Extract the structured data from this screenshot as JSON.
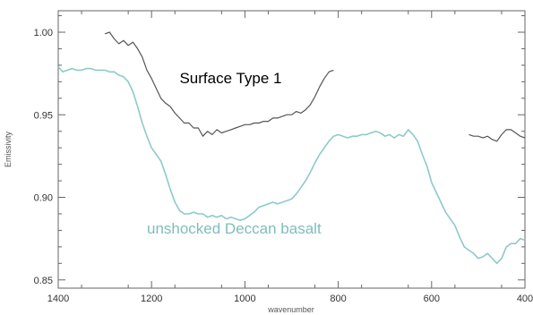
{
  "chart_data": {
    "type": "line",
    "title": "",
    "xlabel": "wavenumber",
    "ylabel": "Emissivity",
    "xlim": [
      1400,
      400
    ],
    "ylim": [
      0.845,
      1.013
    ],
    "x_reversed": true,
    "grid": false,
    "x_ticks": [
      "1400",
      "1200",
      "1000",
      "800",
      "600",
      "400"
    ],
    "y_ticks": [
      "0.85",
      "0.90",
      "0.95",
      "1.00"
    ],
    "annotations": [
      {
        "name": "surface-type-1-label",
        "text": "Surface Type 1",
        "x": 1140,
        "y": 0.969,
        "color": "#000000"
      },
      {
        "name": "deccan-basalt-label",
        "text": "unshocked Deccan basalt",
        "x": 1210,
        "y": 0.878,
        "color": "#7fbdbb"
      }
    ],
    "series": [
      {
        "name": "Surface Type 1",
        "color": "#555555",
        "segments": [
          [
            [
              1300,
              0.999
            ],
            [
              1290,
              1.0
            ],
            [
              1280,
              0.996
            ],
            [
              1270,
              0.993
            ],
            [
              1260,
              0.995
            ],
            [
              1250,
              0.992
            ],
            [
              1240,
              0.994
            ],
            [
              1230,
              0.99
            ],
            [
              1220,
              0.985
            ],
            [
              1210,
              0.977
            ],
            [
              1200,
              0.972
            ],
            [
              1190,
              0.966
            ],
            [
              1180,
              0.96
            ],
            [
              1170,
              0.957
            ],
            [
              1160,
              0.955
            ],
            [
              1150,
              0.951
            ],
            [
              1140,
              0.948
            ],
            [
              1130,
              0.945
            ],
            [
              1120,
              0.945
            ],
            [
              1110,
              0.942
            ],
            [
              1100,
              0.942
            ],
            [
              1090,
              0.937
            ],
            [
              1080,
              0.94
            ],
            [
              1070,
              0.938
            ],
            [
              1060,
              0.941
            ],
            [
              1050,
              0.939
            ],
            [
              1040,
              0.94
            ],
            [
              1030,
              0.941
            ],
            [
              1020,
              0.942
            ],
            [
              1010,
              0.943
            ],
            [
              1000,
              0.944
            ],
            [
              990,
              0.944
            ],
            [
              980,
              0.945
            ],
            [
              970,
              0.945
            ],
            [
              960,
              0.946
            ],
            [
              950,
              0.946
            ],
            [
              940,
              0.948
            ],
            [
              930,
              0.948
            ],
            [
              920,
              0.949
            ],
            [
              910,
              0.95
            ],
            [
              900,
              0.95
            ],
            [
              890,
              0.952
            ],
            [
              880,
              0.951
            ],
            [
              870,
              0.953
            ],
            [
              860,
              0.956
            ],
            [
              850,
              0.961
            ],
            [
              840,
              0.967
            ],
            [
              830,
              0.972
            ],
            [
              820,
              0.976
            ],
            [
              810,
              0.977
            ]
          ],
          [
            [
              520,
              0.938
            ],
            [
              510,
              0.937
            ],
            [
              500,
              0.937
            ],
            [
              490,
              0.936
            ],
            [
              480,
              0.937
            ],
            [
              470,
              0.935
            ],
            [
              460,
              0.934
            ],
            [
              450,
              0.938
            ],
            [
              440,
              0.941
            ],
            [
              430,
              0.941
            ],
            [
              420,
              0.939
            ],
            [
              410,
              0.937
            ],
            [
              400,
              0.936
            ]
          ]
        ]
      },
      {
        "name": "unshocked Deccan basalt",
        "color": "#8ccbc8",
        "segments": [
          [
            [
              1400,
              0.979
            ],
            [
              1390,
              0.976
            ],
            [
              1380,
              0.977
            ],
            [
              1370,
              0.978
            ],
            [
              1360,
              0.977
            ],
            [
              1350,
              0.977
            ],
            [
              1340,
              0.978
            ],
            [
              1330,
              0.978
            ],
            [
              1320,
              0.977
            ],
            [
              1310,
              0.977
            ],
            [
              1300,
              0.977
            ],
            [
              1290,
              0.976
            ],
            [
              1280,
              0.976
            ],
            [
              1270,
              0.974
            ],
            [
              1260,
              0.973
            ],
            [
              1250,
              0.97
            ],
            [
              1240,
              0.964
            ],
            [
              1230,
              0.955
            ],
            [
              1220,
              0.945
            ],
            [
              1210,
              0.937
            ],
            [
              1200,
              0.93
            ],
            [
              1190,
              0.926
            ],
            [
              1180,
              0.922
            ],
            [
              1170,
              0.914
            ],
            [
              1160,
              0.905
            ],
            [
              1150,
              0.897
            ],
            [
              1140,
              0.892
            ],
            [
              1130,
              0.89
            ],
            [
              1120,
              0.89
            ],
            [
              1110,
              0.891
            ],
            [
              1100,
              0.89
            ],
            [
              1090,
              0.89
            ],
            [
              1080,
              0.888
            ],
            [
              1070,
              0.889
            ],
            [
              1060,
              0.888
            ],
            [
              1050,
              0.889
            ],
            [
              1040,
              0.887
            ],
            [
              1030,
              0.888
            ],
            [
              1020,
              0.887
            ],
            [
              1010,
              0.886
            ],
            [
              1000,
              0.887
            ],
            [
              990,
              0.889
            ],
            [
              980,
              0.891
            ],
            [
              970,
              0.894
            ],
            [
              960,
              0.895
            ],
            [
              950,
              0.896
            ],
            [
              940,
              0.897
            ],
            [
              930,
              0.896
            ],
            [
              920,
              0.897
            ],
            [
              910,
              0.898
            ],
            [
              900,
              0.899
            ],
            [
              890,
              0.902
            ],
            [
              880,
              0.906
            ],
            [
              870,
              0.91
            ],
            [
              860,
              0.915
            ],
            [
              850,
              0.921
            ],
            [
              840,
              0.926
            ],
            [
              830,
              0.93
            ],
            [
              820,
              0.934
            ],
            [
              810,
              0.937
            ],
            [
              800,
              0.938
            ],
            [
              790,
              0.937
            ],
            [
              780,
              0.936
            ],
            [
              770,
              0.937
            ],
            [
              760,
              0.937
            ],
            [
              750,
              0.938
            ],
            [
              740,
              0.938
            ],
            [
              730,
              0.939
            ],
            [
              720,
              0.94
            ],
            [
              710,
              0.939
            ],
            [
              700,
              0.937
            ],
            [
              690,
              0.938
            ],
            [
              680,
              0.936
            ],
            [
              670,
              0.938
            ],
            [
              660,
              0.937
            ],
            [
              650,
              0.941
            ],
            [
              640,
              0.938
            ],
            [
              630,
              0.934
            ],
            [
              620,
              0.926
            ],
            [
              610,
              0.919
            ],
            [
              600,
              0.909
            ],
            [
              590,
              0.903
            ],
            [
              580,
              0.897
            ],
            [
              570,
              0.891
            ],
            [
              560,
              0.887
            ],
            [
              550,
              0.883
            ],
            [
              540,
              0.876
            ],
            [
              530,
              0.87
            ],
            [
              520,
              0.868
            ],
            [
              510,
              0.866
            ],
            [
              500,
              0.863
            ],
            [
              490,
              0.864
            ],
            [
              480,
              0.866
            ],
            [
              470,
              0.863
            ],
            [
              460,
              0.86
            ],
            [
              450,
              0.863
            ],
            [
              440,
              0.87
            ],
            [
              430,
              0.872
            ],
            [
              420,
              0.872
            ],
            [
              410,
              0.875
            ],
            [
              400,
              0.874
            ]
          ]
        ]
      }
    ]
  }
}
